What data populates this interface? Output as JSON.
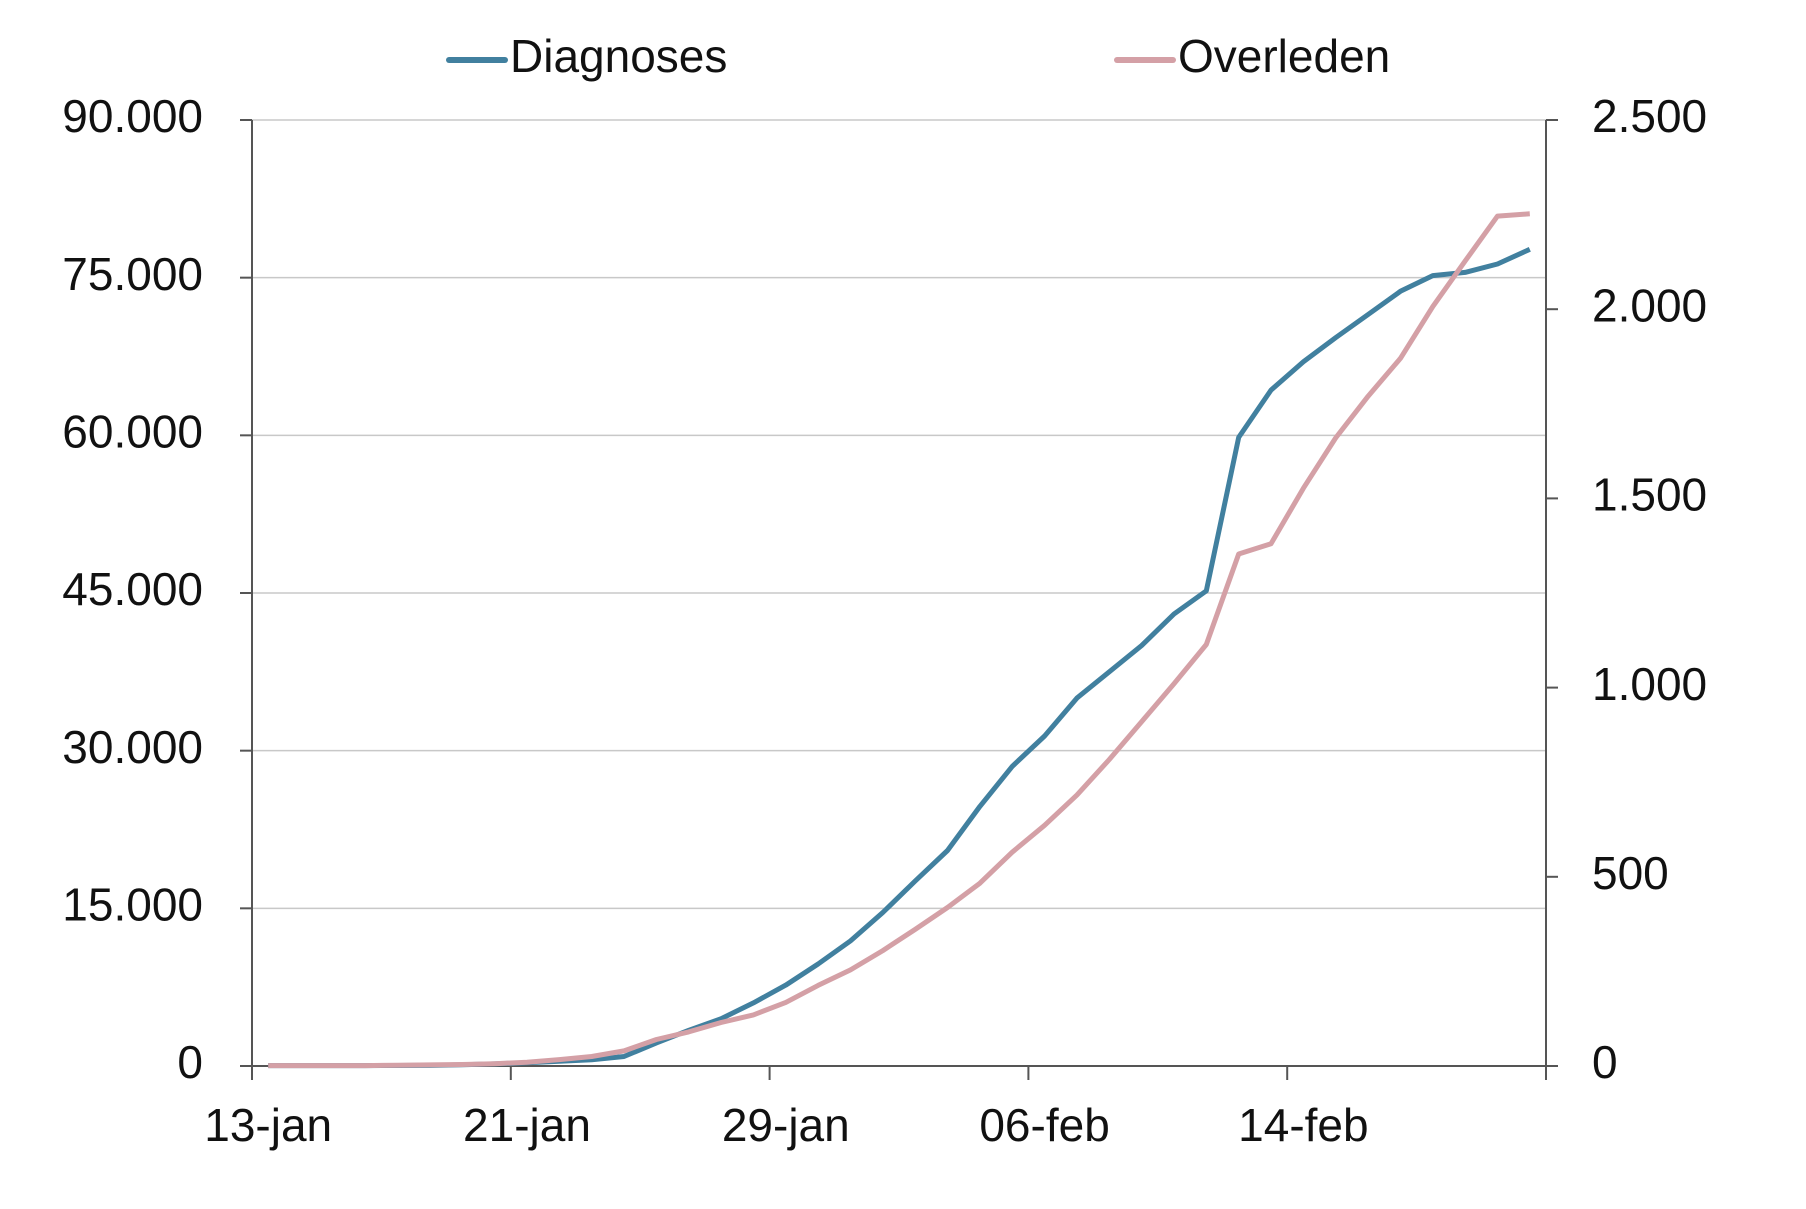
{
  "chart_data": {
    "type": "line",
    "categories": [
      "13-jan",
      null,
      null,
      null,
      null,
      null,
      null,
      null,
      "21-jan",
      null,
      null,
      null,
      null,
      null,
      null,
      null,
      "29-jan",
      null,
      null,
      null,
      null,
      null,
      null,
      null,
      "06-feb",
      null,
      null,
      null,
      null,
      null,
      null,
      null,
      "14-feb",
      null,
      null,
      null,
      null,
      null,
      null,
      null
    ],
    "series": [
      {
        "name": "Diagnoses",
        "color": "#41809f",
        "axis": "y",
        "values": [
          40,
          40,
          40,
          40,
          45,
          60,
          120,
          200,
          300,
          450,
          600,
          900,
          2200,
          3400,
          4500,
          6000,
          7700,
          9700,
          11900,
          14600,
          17600,
          20500,
          24700,
          28500,
          31400,
          35000,
          37500,
          40000,
          43000,
          45200,
          59800,
          64300,
          67000,
          69300,
          71500,
          73700,
          75200,
          75500,
          76300,
          77700
        ]
      },
      {
        "name": "Overleden",
        "color": "#d4a0a6",
        "axis": "y2",
        "values": [
          1,
          1,
          1,
          1,
          2,
          3,
          4,
          6,
          10,
          17,
          25,
          40,
          70,
          90,
          115,
          135,
          168,
          213,
          254,
          305,
          361,
          419,
          483,
          565,
          636,
          716,
          810,
          910,
          1010,
          1114,
          1353,
          1380,
          1527,
          1660,
          1770,
          1870,
          2007,
          2127,
          2246,
          2252
        ]
      }
    ],
    "ylim": [
      0,
      90000
    ],
    "yticks": [
      0,
      {
        "value": 15000,
        "label": "15.000"
      },
      {
        "value": 30000,
        "label": "30.000"
      },
      {
        "value": 45000,
        "label": "45.000"
      },
      {
        "value": 60000,
        "label": "60.000"
      },
      {
        "value": 75000,
        "label": "75.000"
      },
      {
        "value": 90000,
        "label": "90.000"
      }
    ],
    "y2lim": [
      0,
      2500
    ],
    "y2ticks": [
      0,
      500,
      {
        "value": 1000,
        "label": "1.000"
      },
      {
        "value": 1500,
        "label": "1.500"
      },
      {
        "value": 2000,
        "label": "2.000"
      },
      {
        "value": 2500,
        "label": "2.500"
      }
    ],
    "grid": true,
    "legend": "top"
  }
}
